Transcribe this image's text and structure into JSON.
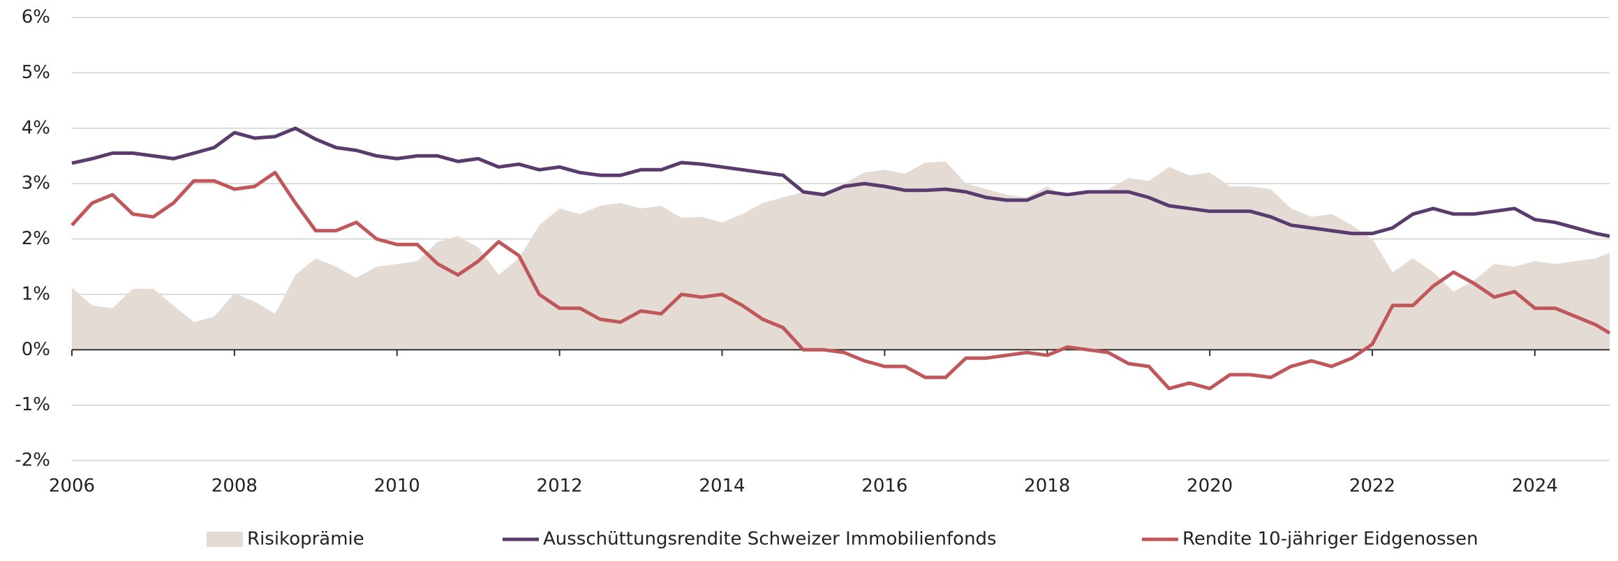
{
  "chart_data": {
    "type": "line",
    "x": [
      2006,
      2006.25,
      2006.5,
      2006.75,
      2007,
      2007.25,
      2007.5,
      2007.75,
      2008,
      2008.25,
      2008.5,
      2008.75,
      2009,
      2009.25,
      2009.5,
      2009.75,
      2010,
      2010.25,
      2010.5,
      2010.75,
      2011,
      2011.25,
      2011.5,
      2011.75,
      2012,
      2012.25,
      2012.5,
      2012.75,
      2013,
      2013.25,
      2013.5,
      2013.75,
      2014,
      2014.25,
      2014.5,
      2014.75,
      2015,
      2015.25,
      2015.5,
      2015.75,
      2016,
      2016.25,
      2016.5,
      2016.75,
      2017,
      2017.25,
      2017.5,
      2017.75,
      2018,
      2018.25,
      2018.5,
      2018.75,
      2019,
      2019.25,
      2019.5,
      2019.75,
      2020,
      2020.25,
      2020.5,
      2020.75,
      2021,
      2021.25,
      2021.5,
      2021.75,
      2022,
      2022.25,
      2022.5,
      2022.75,
      2023,
      2023.25,
      2023.5,
      2023.75,
      2024,
      2024.25,
      2024.5,
      2024.75,
      2024.92
    ],
    "series": [
      {
        "name": "Risikoprämie",
        "type": "area",
        "color": "#e4dcd4",
        "values": [
          1.12,
          0.8,
          0.75,
          1.1,
          1.1,
          0.8,
          0.5,
          0.6,
          1.02,
          0.87,
          0.65,
          1.35,
          1.65,
          1.5,
          1.3,
          1.5,
          1.55,
          1.6,
          1.95,
          2.05,
          1.85,
          1.35,
          1.65,
          2.25,
          2.55,
          2.45,
          2.6,
          2.65,
          2.55,
          2.6,
          2.38,
          2.4,
          2.3,
          2.45,
          2.65,
          2.75,
          2.85,
          2.8,
          3.0,
          3.2,
          3.25,
          3.18,
          3.38,
          3.4,
          3.0,
          2.9,
          2.8,
          2.75,
          2.95,
          2.75,
          2.85,
          2.9,
          3.1,
          3.05,
          3.3,
          3.15,
          3.2,
          2.95,
          2.95,
          2.9,
          2.55,
          2.4,
          2.45,
          2.25,
          2.0,
          1.4,
          1.65,
          1.4,
          1.05,
          1.25,
          1.55,
          1.5,
          1.6,
          1.55,
          1.6,
          1.65,
          1.75
        ]
      },
      {
        "name": "Ausschüttungsrendite Schweizer Immobilienfonds",
        "type": "line",
        "color": "#5a3b6e",
        "values": [
          3.37,
          3.45,
          3.55,
          3.55,
          3.5,
          3.45,
          3.55,
          3.65,
          3.92,
          3.82,
          3.85,
          4.0,
          3.8,
          3.65,
          3.6,
          3.5,
          3.45,
          3.5,
          3.5,
          3.4,
          3.45,
          3.3,
          3.35,
          3.25,
          3.3,
          3.2,
          3.15,
          3.15,
          3.25,
          3.25,
          3.38,
          3.35,
          3.3,
          3.25,
          3.2,
          3.15,
          2.85,
          2.8,
          2.95,
          3.0,
          2.95,
          2.88,
          2.88,
          2.9,
          2.85,
          2.75,
          2.7,
          2.7,
          2.85,
          2.8,
          2.85,
          2.85,
          2.85,
          2.75,
          2.6,
          2.55,
          2.5,
          2.5,
          2.5,
          2.4,
          2.25,
          2.2,
          2.15,
          2.1,
          2.1,
          2.2,
          2.45,
          2.55,
          2.45,
          2.45,
          2.5,
          2.55,
          2.35,
          2.3,
          2.2,
          2.1,
          2.05
        ]
      },
      {
        "name": "Rendite 10-jähriger Eidgenossen",
        "type": "line",
        "color": "#c0575a",
        "values": [
          2.25,
          2.65,
          2.8,
          2.45,
          2.4,
          2.65,
          3.05,
          3.05,
          2.9,
          2.95,
          3.2,
          2.65,
          2.15,
          2.15,
          2.3,
          2.0,
          1.9,
          1.9,
          1.55,
          1.35,
          1.6,
          1.95,
          1.7,
          1.0,
          0.75,
          0.75,
          0.55,
          0.5,
          0.7,
          0.65,
          1.0,
          0.95,
          1.0,
          0.8,
          0.55,
          0.4,
          0.0,
          0.0,
          -0.05,
          -0.2,
          -0.3,
          -0.3,
          -0.5,
          -0.5,
          -0.15,
          -0.15,
          -0.1,
          -0.05,
          -0.1,
          0.05,
          0.0,
          -0.05,
          -0.25,
          -0.3,
          -0.7,
          -0.6,
          -0.7,
          -0.45,
          -0.45,
          -0.5,
          -0.3,
          -0.2,
          -0.3,
          -0.15,
          0.1,
          0.8,
          0.8,
          1.15,
          1.4,
          1.2,
          0.95,
          1.05,
          0.75,
          0.75,
          0.6,
          0.45,
          0.3
        ]
      }
    ],
    "xlim": [
      2006,
      2024.92
    ],
    "xticks": [
      2006,
      2008,
      2010,
      2012,
      2014,
      2016,
      2018,
      2020,
      2022,
      2024
    ],
    "ylim": [
      -2,
      6
    ],
    "yticks": [
      {
        "value": -2,
        "label": "-2%"
      },
      {
        "value": -1,
        "label": "-1%"
      },
      {
        "value": 0,
        "label": "0%"
      },
      {
        "value": 1,
        "label": "1%"
      },
      {
        "value": 2,
        "label": "2%"
      },
      {
        "value": 3,
        "label": "3%"
      },
      {
        "value": 4,
        "label": "4%"
      },
      {
        "value": 5,
        "label": "5%"
      },
      {
        "value": 6,
        "label": "6%"
      }
    ],
    "grid": true,
    "legend": "bottom"
  }
}
